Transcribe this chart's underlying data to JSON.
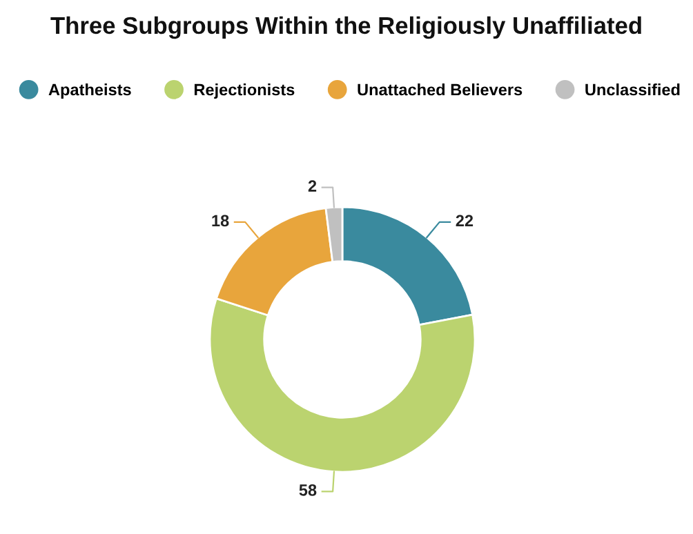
{
  "chart_data": {
    "type": "donut",
    "title": "Three Subgroups Within the Religiously Unaffiliated",
    "categories": [
      "Apatheists",
      "Rejectionists",
      "Unattached Believers",
      "Unclassified"
    ],
    "values": [
      22,
      58,
      18,
      2
    ],
    "colors": [
      "#3a8a9e",
      "#bbd36f",
      "#e8a53c",
      "#c0c0c0"
    ],
    "data_labels": true,
    "legend": "top"
  }
}
